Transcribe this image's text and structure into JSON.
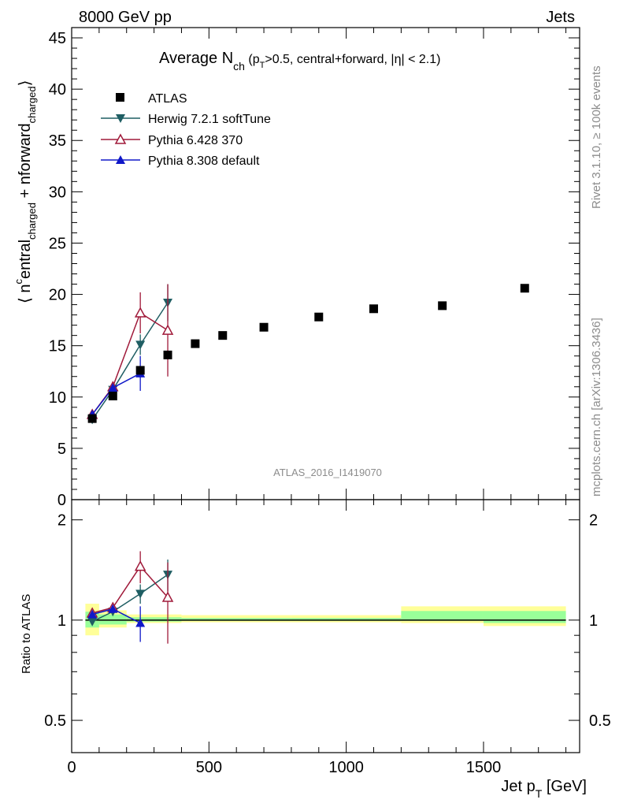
{
  "header": {
    "left": "8000 GeV pp",
    "right": "Jets"
  },
  "side_labels": {
    "rivet": "Rivet 3.1.10, ≥ 100k events",
    "mcplots": "mcplots.cern.ch [arXiv:1306.3436]"
  },
  "analysis_id": "ATLAS_2016_I1419070",
  "colors": {
    "ATLAS": "#000000",
    "Herwig": "#1f5e63",
    "Pythia6": "#a01a3a",
    "Pythia8": "#1018c8",
    "band_yellow": "#ffff99",
    "band_green": "#99ff99"
  },
  "chart_data": [
    {
      "type": "scatter",
      "panel": "main",
      "title": "Average N_ch (p_T>0.5, central+forward, |η| < 2.1)",
      "title_parts": {
        "a": "Average N",
        "b": "ch",
        "c": " (p",
        "d": "T",
        "e": ">0.5, central+forward, |η| < 2.1)"
      },
      "ylabel": "⟨ n^central_charged + n^forward_charged ⟩",
      "ylabel_parts": {
        "a": "⟨ n",
        "b": "c",
        "c": "entral",
        "d": "charged",
        "e": " + n",
        "f": "forward",
        "g": "charged",
        "h": "⟩"
      },
      "xlim": [
        0,
        1850
      ],
      "ylim": [
        0,
        46
      ],
      "yticks": [
        0,
        5,
        10,
        15,
        20,
        25,
        30,
        35,
        40,
        45
      ],
      "yticklabels": [
        "0",
        "5",
        "10",
        "15",
        "20",
        "25",
        "30",
        "35",
        "40",
        "45"
      ],
      "legend_position": "top-left",
      "series": [
        {
          "name": "ATLAS",
          "marker": "square",
          "line": false,
          "x": [
            75,
            150,
            250,
            350,
            450,
            550,
            700,
            900,
            1100,
            1350,
            1650
          ],
          "y": [
            7.9,
            10.1,
            12.6,
            14.1,
            15.2,
            16.0,
            16.8,
            17.8,
            18.6,
            18.9,
            20.6
          ],
          "xerr": [
            25,
            50,
            50,
            50,
            50,
            50,
            100,
            100,
            100,
            150,
            150
          ]
        },
        {
          "name": "Herwig 7.2.1 softTune",
          "marker": "triangle-down",
          "line": true,
          "x": [
            75,
            150,
            250,
            350
          ],
          "y": [
            7.8,
            10.7,
            15.1,
            19.2
          ],
          "yerr": [
            0.3,
            0.4,
            1.0,
            1.8
          ]
        },
        {
          "name": "Pythia 6.428 370",
          "marker": "triangle-up-open",
          "line": true,
          "x": [
            75,
            150,
            250,
            350
          ],
          "y": [
            8.3,
            11.0,
            18.2,
            16.5
          ],
          "yerr": [
            0.3,
            0.5,
            2.0,
            4.5
          ]
        },
        {
          "name": "Pythia 8.308 default",
          "marker": "triangle-up",
          "line": true,
          "x": [
            75,
            150,
            250
          ],
          "y": [
            8.3,
            10.9,
            12.3
          ],
          "yerr": [
            0.3,
            0.4,
            1.7
          ]
        }
      ]
    },
    {
      "type": "scatter",
      "panel": "ratio",
      "ylabel": "Ratio to ATLAS",
      "xlabel": "Jet p_T [GeV]",
      "xlabel_parts": {
        "a": "Jet p",
        "b": "T",
        "c": " [GeV]"
      },
      "xlim": [
        0,
        1850
      ],
      "ylim": [
        0.4,
        2.3
      ],
      "log_y": true,
      "xticks": [
        0,
        500,
        1000,
        1500
      ],
      "xticklabels": [
        "0",
        "500",
        "1000",
        "1500"
      ],
      "yticks": [
        0.5,
        1,
        2
      ],
      "yticklabels": [
        "0.5",
        "1",
        "2"
      ],
      "bands": [
        {
          "x0": 50,
          "x1": 100,
          "yellow": [
            0.9,
            1.12
          ],
          "green": [
            0.95,
            1.06
          ]
        },
        {
          "x0": 100,
          "x1": 200,
          "yellow": [
            0.95,
            1.07
          ],
          "green": [
            0.97,
            1.04
          ]
        },
        {
          "x0": 200,
          "x1": 400,
          "yellow": [
            0.98,
            1.04
          ],
          "green": [
            0.99,
            1.02
          ]
        },
        {
          "x0": 400,
          "x1": 800,
          "yellow": [
            0.985,
            1.035
          ],
          "green": [
            0.995,
            1.015
          ]
        },
        {
          "x0": 800,
          "x1": 1200,
          "yellow": [
            0.985,
            1.035
          ],
          "green": [
            0.995,
            1.015
          ]
        },
        {
          "x0": 1200,
          "x1": 1500,
          "yellow": [
            0.98,
            1.1
          ],
          "green": [
            0.995,
            1.065
          ]
        },
        {
          "x0": 1500,
          "x1": 1800,
          "yellow": [
            0.96,
            1.1
          ],
          "green": [
            0.98,
            1.065
          ]
        }
      ],
      "series": [
        {
          "name": "Herwig 7.2.1 softTune",
          "marker": "triangle-down",
          "x": [
            75,
            150,
            250,
            350
          ],
          "y": [
            0.99,
            1.06,
            1.2,
            1.37
          ],
          "yerr": [
            0.02,
            0.03,
            0.08,
            0.15
          ]
        },
        {
          "name": "Pythia 6.428 370",
          "marker": "triangle-up-open",
          "x": [
            75,
            150,
            250,
            350
          ],
          "y": [
            1.05,
            1.09,
            1.45,
            1.17
          ],
          "yerr": [
            0.03,
            0.04,
            0.16,
            0.32
          ]
        },
        {
          "name": "Pythia 8.308 default",
          "marker": "triangle-up",
          "x": [
            75,
            150,
            250
          ],
          "y": [
            1.04,
            1.08,
            0.98
          ],
          "yerr": [
            0.02,
            0.03,
            0.12
          ]
        }
      ]
    }
  ]
}
